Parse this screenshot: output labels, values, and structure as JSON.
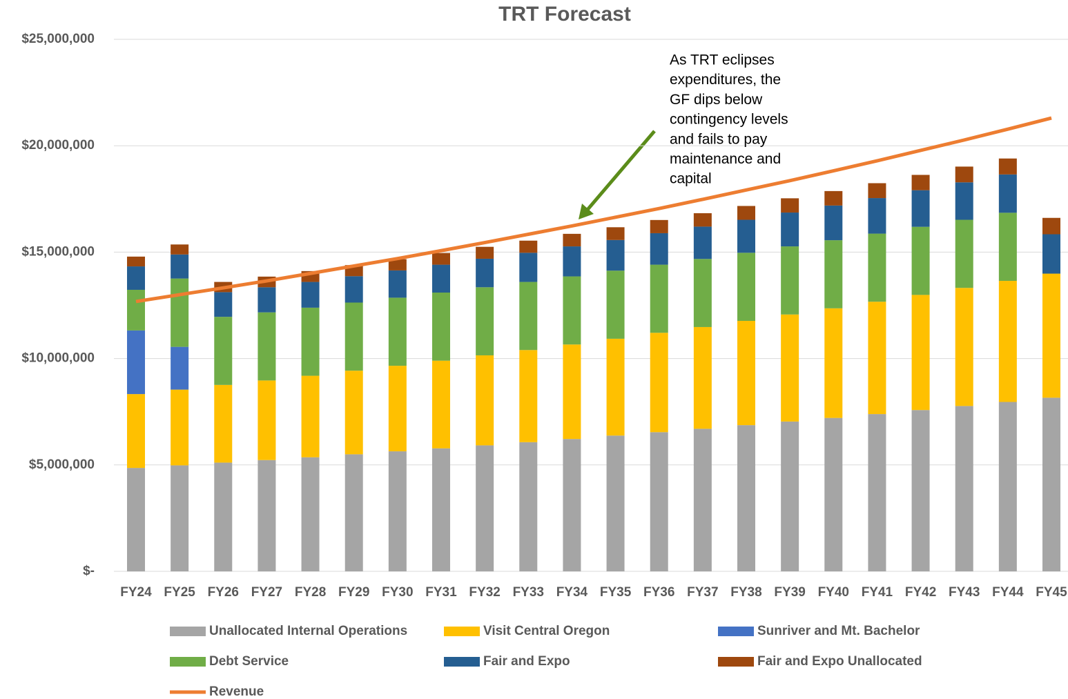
{
  "chart_data": {
    "type": "bar",
    "stacked": true,
    "title": "TRT Forecast",
    "annotation": [
      "As TRT eclipses",
      "expenditures, the",
      "GF dips below",
      "contingency levels",
      "and fails to pay",
      "maintenance and",
      "capital"
    ],
    "categories": [
      "FY24",
      "FY25",
      "FY26",
      "FY27",
      "FY28",
      "FY29",
      "FY30",
      "FY31",
      "FY32",
      "FY33",
      "FY34",
      "FY35",
      "FY36",
      "FY37",
      "FY38",
      "FY39",
      "FY40",
      "FY41",
      "FY42",
      "FY43",
      "FY44",
      "FY45"
    ],
    "series": [
      {
        "name": "Unallocated Internal Operations",
        "color": "#a5a5a5",
        "values": [
          4860000,
          4980000,
          5110000,
          5230000,
          5360000,
          5500000,
          5640000,
          5780000,
          5920000,
          6070000,
          6220000,
          6380000,
          6540000,
          6700000,
          6870000,
          7040000,
          7210000,
          7390000,
          7580000,
          7770000,
          7960000,
          8160000
        ]
      },
      {
        "name": "Visit Central Oregon",
        "color": "#ffc000",
        "values": [
          3470000,
          3560000,
          3650000,
          3740000,
          3830000,
          3930000,
          4020000,
          4120000,
          4230000,
          4330000,
          4440000,
          4550000,
          4670000,
          4780000,
          4900000,
          5030000,
          5150000,
          5280000,
          5410000,
          5550000,
          5690000,
          5830000
        ]
      },
      {
        "name": "Sunriver and Mt. Bachelor",
        "color": "#4472c4",
        "values": [
          2990000,
          2010000,
          0,
          0,
          0,
          0,
          0,
          0,
          0,
          0,
          0,
          0,
          0,
          0,
          0,
          0,
          0,
          0,
          0,
          0,
          0,
          0
        ]
      },
      {
        "name": "Debt Service",
        "color": "#70ad47",
        "values": [
          1910000,
          3210000,
          3200000,
          3200000,
          3200000,
          3200000,
          3200000,
          3200000,
          3200000,
          3200000,
          3200000,
          3200000,
          3200000,
          3200000,
          3200000,
          3200000,
          3200000,
          3200000,
          3200000,
          3200000,
          3200000,
          0
        ]
      },
      {
        "name": "Fair and Expo",
        "color": "#255e91",
        "values": [
          1100000,
          1130000,
          1160000,
          1180000,
          1210000,
          1240000,
          1280000,
          1310000,
          1340000,
          1370000,
          1410000,
          1440000,
          1480000,
          1520000,
          1550000,
          1590000,
          1630000,
          1670000,
          1720000,
          1760000,
          1800000,
          1850000
        ]
      },
      {
        "name": "Fair and Expo Unallocated",
        "color": "#9e480e",
        "values": [
          460000,
          470000,
          480000,
          500000,
          510000,
          520000,
          530000,
          550000,
          560000,
          570000,
          590000,
          600000,
          620000,
          630000,
          650000,
          670000,
          680000,
          700000,
          720000,
          740000,
          750000,
          770000
        ]
      },
      {
        "name": "Revenue",
        "type": "line",
        "color": "#ed7d31",
        "values": [
          12680000,
          13000000,
          13320000,
          13650000,
          14000000,
          14350000,
          14700000,
          15070000,
          15450000,
          15840000,
          16230000,
          16640000,
          17050000,
          17480000,
          17920000,
          18360000,
          18820000,
          19290000,
          19780000,
          20270000,
          20780000,
          21300000
        ]
      }
    ],
    "ylim": [
      0,
      25000000
    ],
    "yticks": [
      {
        "value": 0,
        "label": "$-"
      },
      {
        "value": 5000000,
        "label": "$5,000,000"
      },
      {
        "value": 10000000,
        "label": "$10,000,000"
      },
      {
        "value": 15000000,
        "label": "$15,000,000"
      },
      {
        "value": 20000000,
        "label": "$20,000,000"
      },
      {
        "value": 25000000,
        "label": "$25,000,000"
      }
    ],
    "grid": true,
    "legend": "bottom"
  }
}
